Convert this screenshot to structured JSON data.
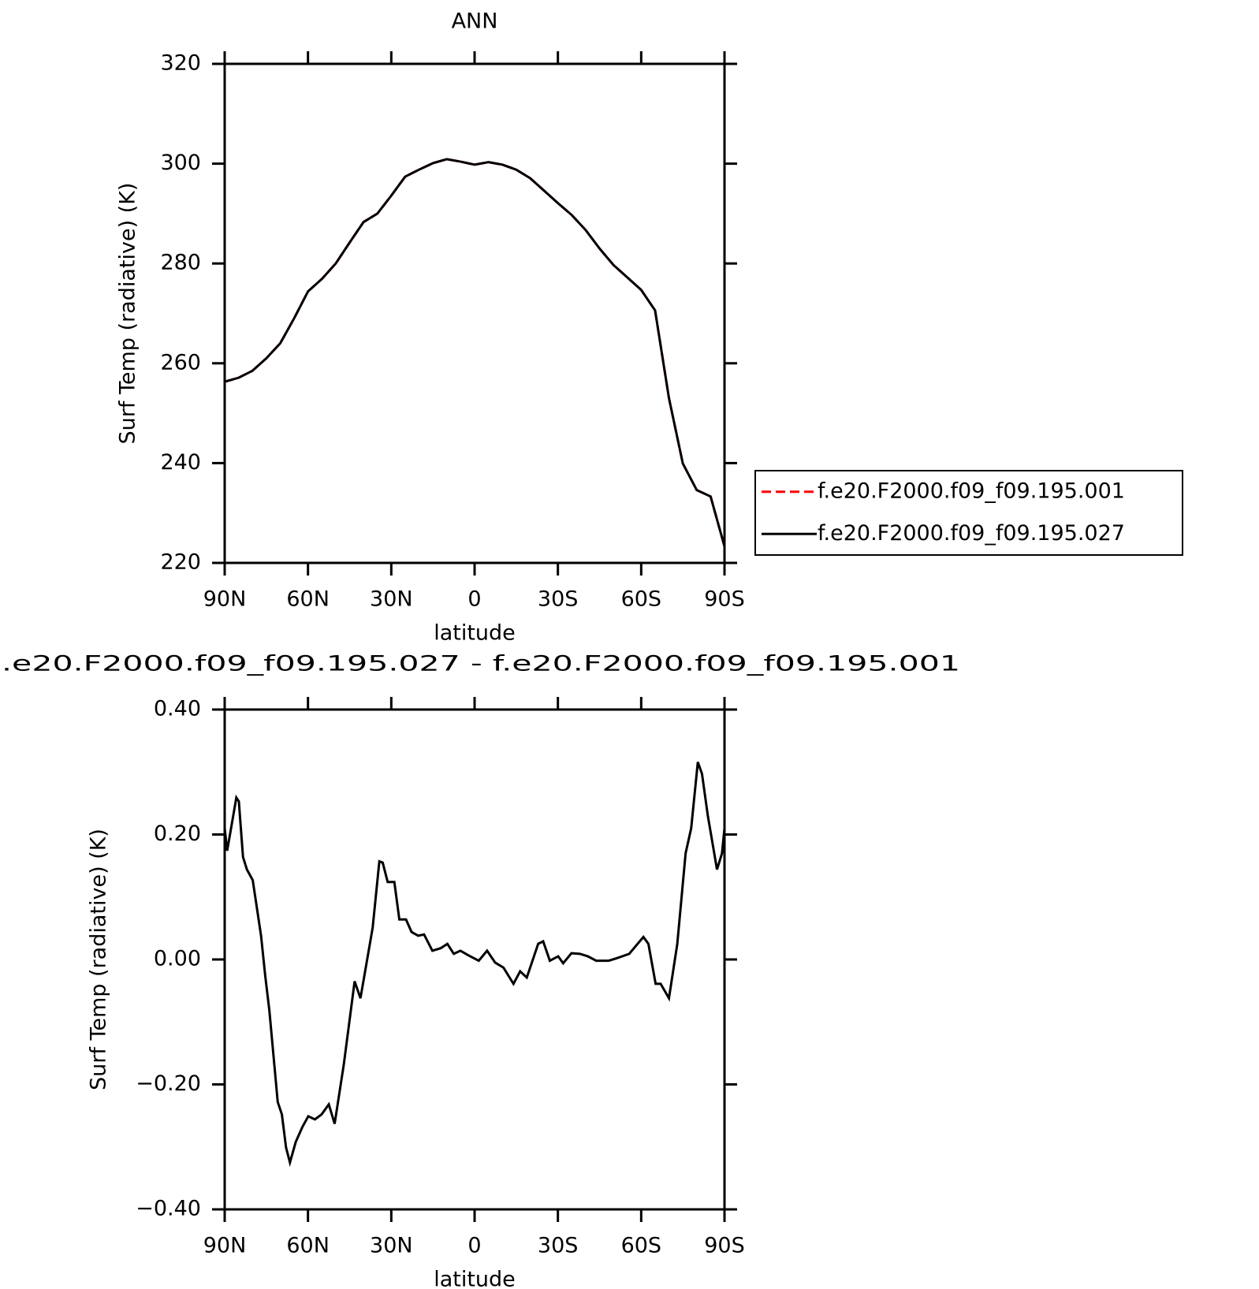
{
  "chart_data": [
    {
      "type": "line",
      "title": "ANN",
      "x_label": "latitude",
      "y_label": "Surf Temp (radiative) (K)",
      "x": [
        90,
        85,
        80,
        75,
        70,
        65,
        60,
        55,
        50,
        45,
        40,
        35,
        30,
        25,
        20,
        15,
        10,
        5,
        0,
        -5,
        -10,
        -15,
        -20,
        -25,
        -30,
        -35,
        -40,
        -45,
        -50,
        -55,
        -60,
        -65,
        -70,
        -75,
        -80,
        -85,
        -90
      ],
      "series": [
        {
          "name": "f.e20.F2000.f09_f09.195.001",
          "color": "#ff0000",
          "linestyle": "dashed",
          "values": [
            256.3,
            257.1,
            258.5,
            261,
            264,
            269,
            274.4,
            276.9,
            280,
            284.2,
            288.3,
            290,
            293.6,
            297.4,
            298.8,
            300.1,
            300.9,
            300.4,
            299.8,
            300.3,
            299.8,
            298.8,
            297.1,
            294.6,
            292.1,
            289.7,
            286.7,
            283,
            279.7,
            277.2,
            274.7,
            270.6,
            253,
            239.9,
            234.6,
            233.3,
            223.3
          ]
        },
        {
          "name": "f.e20.F2000.f09_f09.195.027",
          "color": "#000000",
          "linestyle": "solid",
          "values": [
            256.3,
            257.1,
            258.5,
            261,
            264,
            269,
            274.4,
            276.9,
            280,
            284.2,
            288.3,
            290,
            293.6,
            297.4,
            298.8,
            300.1,
            300.9,
            300.4,
            299.8,
            300.3,
            299.8,
            298.8,
            297.1,
            294.6,
            292.1,
            289.7,
            286.7,
            283,
            279.7,
            277.2,
            274.7,
            270.6,
            253,
            239.9,
            234.6,
            233.3,
            223.3
          ]
        }
      ],
      "xlim": [
        90,
        -90
      ],
      "xticks": [
        {
          "value": 90,
          "label": "90N"
        },
        {
          "value": 60,
          "label": "60N"
        },
        {
          "value": 30,
          "label": "30N"
        },
        0,
        {
          "value": -30,
          "label": "30S"
        },
        {
          "value": -60,
          "label": "60S"
        },
        {
          "value": -90,
          "label": "90S"
        }
      ],
      "ylim": [
        220,
        320
      ],
      "yticks": [
        220,
        240,
        260,
        280,
        300,
        320
      ],
      "legend": "outside-right"
    },
    {
      "type": "line",
      "title": ".e20.F2000.f09_f09.195.027 - f.e20.F2000.f09_f09.195.001",
      "x_label": "latitude",
      "y_label": "Surf Temp (radiative) (K)",
      "x": [
        90,
        89.1,
        85.8,
        84.9,
        83.4,
        82,
        79.9,
        76.9,
        75.4,
        73.9,
        70.9,
        69.4,
        67.9,
        66.5,
        64.4,
        62,
        59.9,
        57.5,
        55.1,
        52.5,
        50.4,
        47.1,
        43.2,
        41.1,
        36.7,
        34.3,
        33.1,
        31.3,
        28.9,
        27.1,
        24.7,
        22.7,
        20.3,
        18.2,
        15.2,
        12.2,
        9.8,
        7.5,
        5.1,
        2.4,
        -1.5,
        -4.5,
        -7.4,
        -10.4,
        -14,
        -16.4,
        -18.8,
        -22.9,
        -24.7,
        -27.1,
        -30.1,
        -31.9,
        -34.9,
        -37.9,
        -40.8,
        -43.8,
        -48.3,
        -51.2,
        -55.7,
        -58.7,
        -60.8,
        -62.6,
        -65.2,
        -67,
        -70,
        -73,
        -76,
        -78,
        -80.4,
        -81.9,
        -84,
        -87.3,
        -89.1,
        -90
      ],
      "series": [
        {
          "name": null,
          "color": "#000000",
          "linestyle": "solid",
          "values": [
            0.21,
            0.174,
            0.259,
            0.253,
            0.164,
            0.144,
            0.127,
            0.038,
            -0.026,
            -0.082,
            -0.228,
            -0.248,
            -0.301,
            -0.325,
            -0.292,
            -0.268,
            -0.251,
            -0.256,
            -0.248,
            -0.232,
            -0.263,
            -0.168,
            -0.035,
            -0.062,
            0.051,
            0.157,
            0.155,
            0.124,
            0.124,
            0.064,
            0.064,
            0.044,
            0.038,
            0.04,
            0.014,
            0.018,
            0.025,
            0.009,
            0.014,
            0.007,
            -0.002,
            0.014,
            -0.005,
            -0.013,
            -0.039,
            -0.019,
            -0.029,
            0.025,
            0.029,
            -0.002,
            0.005,
            -0.006,
            0.01,
            0.009,
            0.005,
            -0.002,
            -0.002,
            0.002,
            0.009,
            0.025,
            0.036,
            0.025,
            -0.039,
            -0.039,
            -0.062,
            0.025,
            0.17,
            0.21,
            0.316,
            0.297,
            0.23,
            0.144,
            0.17,
            0.21
          ]
        }
      ],
      "xlim": [
        90,
        -90
      ],
      "xticks": [
        {
          "value": 90,
          "label": "90N"
        },
        {
          "value": 60,
          "label": "60N"
        },
        {
          "value": 30,
          "label": "30N"
        },
        0,
        {
          "value": -30,
          "label": "30S"
        },
        {
          "value": -60,
          "label": "60S"
        },
        {
          "value": -90,
          "label": "90S"
        }
      ],
      "ylim": [
        -0.4,
        0.4
      ],
      "yticks": [
        {
          "value": -0.4,
          "label": "−0.40"
        },
        {
          "value": -0.2,
          "label": "−0.20"
        },
        {
          "value": 0,
          "label": "0.00"
        },
        {
          "value": 0.2,
          "label": "0.20"
        },
        {
          "value": 0.4,
          "label": "0.40"
        }
      ]
    }
  ]
}
